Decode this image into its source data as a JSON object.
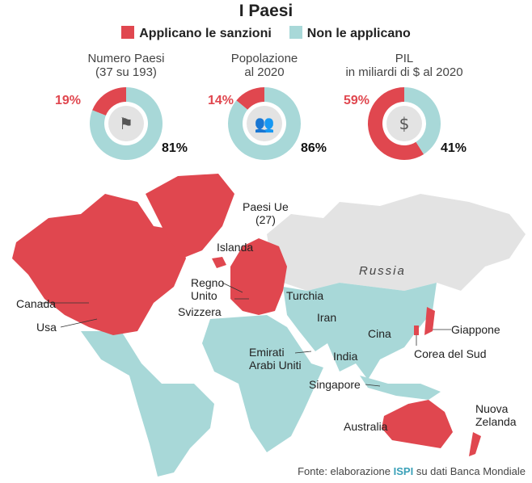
{
  "title": "I Paesi",
  "legend": [
    {
      "label": "Applicano le sanzioni",
      "color": "#e0474f"
    },
    {
      "label": "Non le applicano",
      "color": "#a8d8d8"
    }
  ],
  "colors": {
    "sanctions": "#e0474f",
    "no_sanctions": "#a8d8d8",
    "other": "#e3e3e3"
  },
  "chart_data": [
    {
      "type": "pie",
      "title_line1": "Numero Paesi",
      "title_line2": "(37 su 193)",
      "icon": "flags-icon",
      "categories": [
        "Applicano le sanzioni",
        "Non le applicano"
      ],
      "values": [
        19,
        81
      ],
      "labels": [
        "19%",
        "81%"
      ]
    },
    {
      "type": "pie",
      "title_line1": "Popolazione",
      "title_line2": "al 2020",
      "icon": "people-icon",
      "categories": [
        "Applicano le sanzioni",
        "Non le applicano"
      ],
      "values": [
        14,
        86
      ],
      "labels": [
        "14%",
        "86%"
      ]
    },
    {
      "type": "pie",
      "title_line1": "PIL",
      "title_line2": "in miliardi di $ al 2020",
      "icon": "coins-icon",
      "categories": [
        "Applicano le sanzioni",
        "Non le applicano"
      ],
      "values": [
        59,
        41
      ],
      "labels": [
        "59%",
        "41%"
      ]
    }
  ],
  "map": {
    "labels": {
      "paesi_ue_1": "Paesi Ue",
      "paesi_ue_2": "(27)",
      "islanda": "Islanda",
      "regno_1": "Regno",
      "regno_2": "Unito",
      "svizzera": "Svizzera",
      "canada": "Canada",
      "usa": "Usa",
      "russia": "Russia",
      "turchia": "Turchia",
      "iran": "Iran",
      "cina": "Cina",
      "giappone": "Giappone",
      "corea": "Corea del Sud",
      "emirati_1": "Emirati",
      "emirati_2": "Arabi Uniti",
      "india": "India",
      "singapore": "Singapore",
      "australia": "Australia",
      "nz_1": "Nuova",
      "nz_2": "Zelanda"
    }
  },
  "source": {
    "prefix": "Fonte: elaborazione",
    "brand": "ISPI",
    "suffix": "su dati Banca Mondiale"
  }
}
